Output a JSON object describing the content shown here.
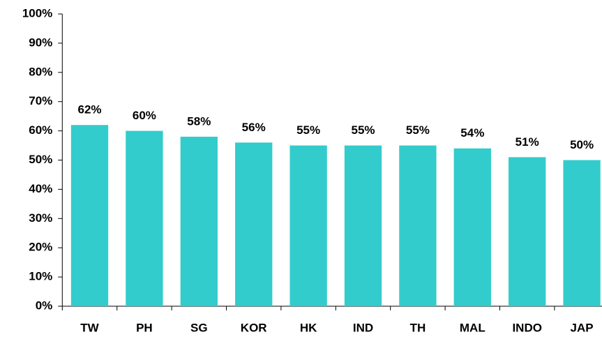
{
  "chart_data": {
    "type": "bar",
    "categories": [
      "TW",
      "PH",
      "SG",
      "KOR",
      "HK",
      "IND",
      "TH",
      "MAL",
      "INDO",
      "JAP"
    ],
    "values": [
      62,
      60,
      58,
      56,
      55,
      55,
      55,
      54,
      51,
      50
    ],
    "value_labels": [
      "62%",
      "60%",
      "58%",
      "56%",
      "55%",
      "55%",
      "55%",
      "54%",
      "51%",
      "50%"
    ],
    "color": "#33cccc",
    "ylim": [
      0,
      100
    ],
    "yticks": [
      {
        "value": 0,
        "label": "0%"
      },
      {
        "value": 10,
        "label": "10%"
      },
      {
        "value": 20,
        "label": "20%"
      },
      {
        "value": 30,
        "label": "30%"
      },
      {
        "value": 40,
        "label": "40%"
      },
      {
        "value": 50,
        "label": "50%"
      },
      {
        "value": 60,
        "label": "60%"
      },
      {
        "value": 70,
        "label": "70%"
      },
      {
        "value": 80,
        "label": "80%"
      },
      {
        "value": 90,
        "label": "90%"
      },
      {
        "value": 100,
        "label": "100%"
      }
    ],
    "grid": false
  }
}
